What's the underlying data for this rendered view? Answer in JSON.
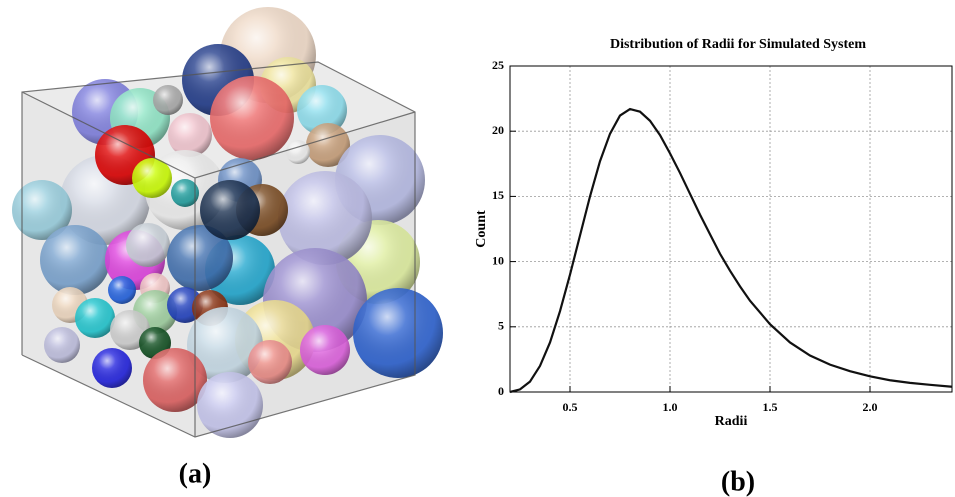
{
  "panel_labels": [
    "(a)",
    "(b)"
  ],
  "chart_data": {
    "type": "line",
    "title": "Distribution of Radii for Simulated System",
    "xlabel": "Radii",
    "ylabel": "Count",
    "x": [
      0.2,
      0.25,
      0.3,
      0.35,
      0.4,
      0.45,
      0.5,
      0.55,
      0.6,
      0.65,
      0.7,
      0.75,
      0.8,
      0.85,
      0.9,
      0.95,
      1.0,
      1.05,
      1.1,
      1.15,
      1.2,
      1.25,
      1.3,
      1.35,
      1.4,
      1.5,
      1.6,
      1.7,
      1.8,
      1.9,
      2.0,
      2.1,
      2.2,
      2.3,
      2.41
    ],
    "values": [
      0,
      0.2,
      0.8,
      2.0,
      3.8,
      6.2,
      9.0,
      12.0,
      15.0,
      17.7,
      19.8,
      21.2,
      21.7,
      21.5,
      20.8,
      19.7,
      18.3,
      16.8,
      15.2,
      13.6,
      12.1,
      10.6,
      9.3,
      8.1,
      7.0,
      5.2,
      3.8,
      2.8,
      2.1,
      1.6,
      1.2,
      0.9,
      0.7,
      0.55,
      0.4
    ],
    "color": "#111111",
    "xlim": [
      0.2,
      2.41
    ],
    "ylim": [
      0,
      25
    ],
    "xticks": [
      0.5,
      {
        "value": 1,
        "label": "1.0"
      },
      1.5,
      {
        "value": 2,
        "label": "2.0"
      }
    ],
    "yticks": [
      0,
      5,
      10,
      15,
      20,
      25
    ],
    "grid": true
  }
}
